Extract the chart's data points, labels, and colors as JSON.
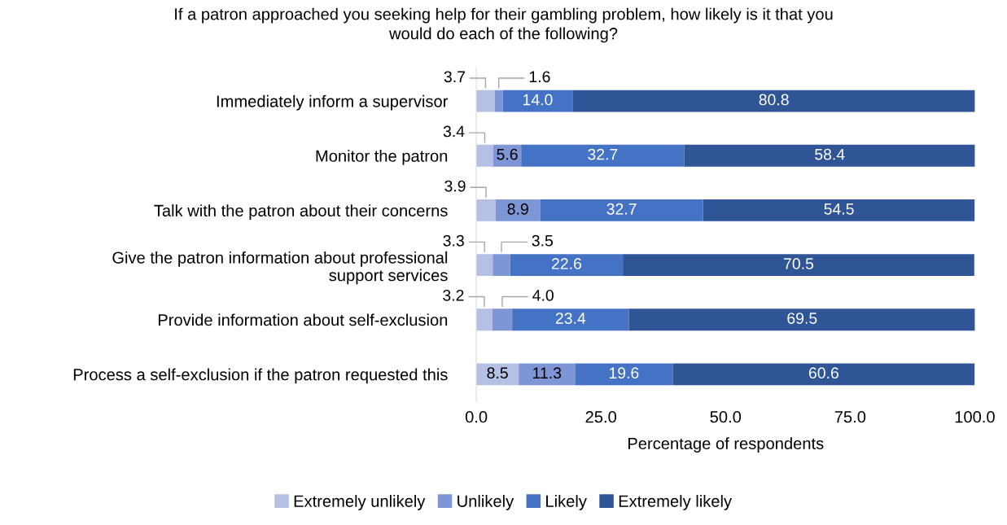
{
  "chart_data": {
    "type": "bar",
    "orientation": "horizontal",
    "stacked": true,
    "title": "If a patron approached you seeking help for their gambling problem, how likely is it that you\nwould do each of the following?",
    "xlabel": "Percentage of respondents",
    "categories": [
      "Immediately inform a supervisor",
      "Monitor the patron",
      "Talk with the patron about their concerns",
      "Give the patron information about professional\nsupport services",
      "Provide information about self-exclusion",
      "Process a self-exclusion if the patron requested this"
    ],
    "series": [
      {
        "name": "Extremely unlikely",
        "color": "#b4c0e4",
        "values": [
          3.7,
          3.4,
          3.9,
          3.3,
          3.2,
          8.5
        ],
        "value_labels": [
          "3.7",
          "3.4",
          "3.9",
          "3.3",
          "3.2",
          "8.5"
        ]
      },
      {
        "name": "Unlikely",
        "color": "#7f96d6",
        "values": [
          1.6,
          5.6,
          8.9,
          3.5,
          4.0,
          11.3
        ],
        "value_labels": [
          "1.6",
          "5.6",
          "8.9",
          "3.5",
          "4.0",
          "11.3"
        ]
      },
      {
        "name": "Likely",
        "color": "#4472c4",
        "values": [
          14.0,
          32.7,
          32.7,
          22.6,
          23.4,
          19.6
        ],
        "value_labels": [
          "14.0",
          "32.7",
          "32.7",
          "22.6",
          "23.4",
          "19.6"
        ]
      },
      {
        "name": "Extremely likely",
        "color": "#2f5597",
        "values": [
          80.8,
          58.4,
          54.5,
          70.5,
          69.5,
          60.6
        ],
        "value_labels": [
          "80.8",
          "58.4",
          "54.5",
          "70.5",
          "69.5",
          "60.6"
        ]
      }
    ],
    "xlim": [
      0,
      100
    ],
    "xticks": [
      {
        "value": 0,
        "label": "0.0"
      },
      {
        "value": 25,
        "label": "25.0"
      },
      {
        "value": 50,
        "label": "50.0"
      },
      {
        "value": 75,
        "label": "75.0"
      },
      {
        "value": 100,
        "label": "100.0"
      }
    ],
    "grid": false,
    "legend": "bottom"
  }
}
